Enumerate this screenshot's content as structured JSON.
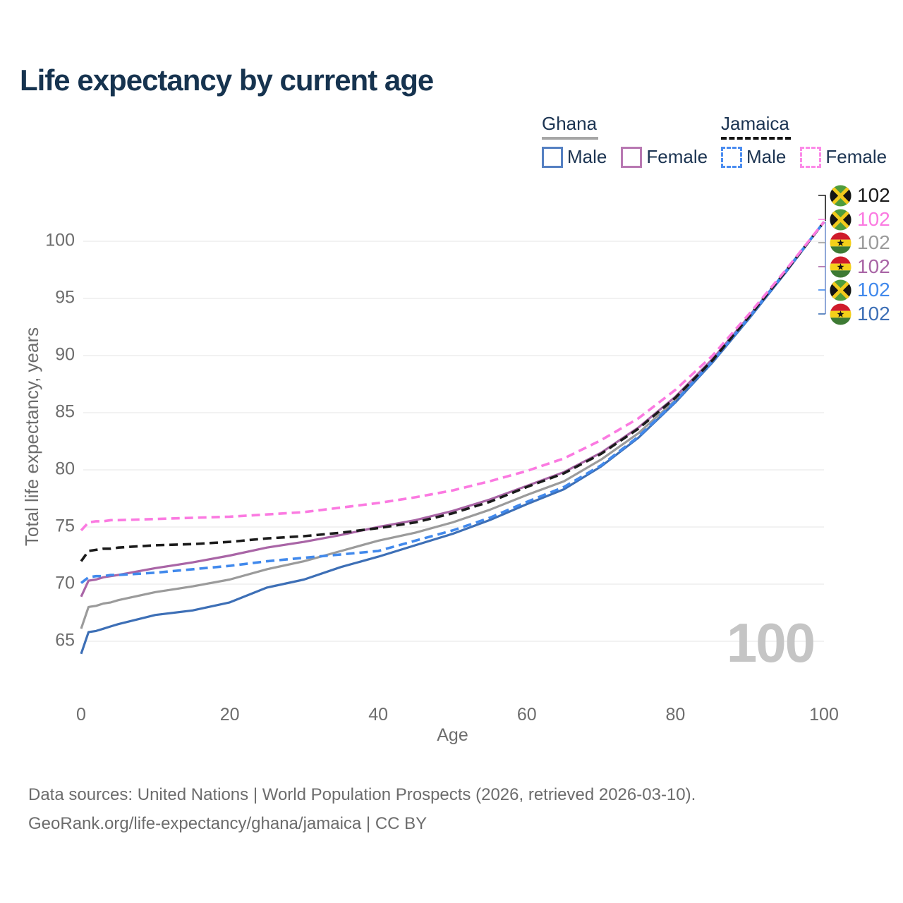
{
  "chart_data": {
    "type": "line",
    "title": "Life expectancy by current age",
    "xlabel": "Age",
    "ylabel": "Total life expectancy, years",
    "xlim": [
      0,
      100
    ],
    "ylim": [
      63,
      102.5
    ],
    "xticks": [
      0,
      20,
      40,
      60,
      80,
      100
    ],
    "yticks": [
      65,
      70,
      75,
      80,
      85,
      90,
      95,
      100
    ],
    "grid": "horizontal",
    "legend_position": "top-right",
    "watermark": "100",
    "x": [
      0,
      1,
      2,
      3,
      4,
      5,
      10,
      15,
      20,
      25,
      30,
      35,
      40,
      45,
      50,
      55,
      60,
      65,
      70,
      75,
      80,
      85,
      90,
      95,
      100
    ],
    "series": [
      {
        "name": "Ghana",
        "group": "Ghana",
        "dash": "solid",
        "color": "#9b9b9b",
        "values": [
          66.1,
          68.0,
          68.1,
          68.3,
          68.4,
          68.6,
          69.3,
          69.8,
          70.4,
          71.3,
          72.0,
          72.9,
          73.8,
          74.5,
          75.4,
          76.5,
          77.8,
          79.0,
          80.9,
          83.2,
          86.1,
          89.5,
          93.4,
          97.4,
          101.7
        ]
      },
      {
        "name": "Ghana Female",
        "group": "Ghana",
        "dash": "solid",
        "color": "#a965a6",
        "values": [
          68.9,
          70.3,
          70.4,
          70.6,
          70.7,
          70.8,
          71.4,
          71.9,
          72.5,
          73.2,
          73.7,
          74.3,
          75.0,
          75.6,
          76.4,
          77.4,
          78.6,
          79.8,
          81.5,
          83.7,
          86.4,
          89.7,
          93.5,
          97.5,
          101.7
        ]
      },
      {
        "name": "Ghana Male",
        "group": "Ghana",
        "dash": "solid",
        "color": "#3d6fb6",
        "values": [
          63.9,
          65.8,
          65.9,
          66.1,
          66.3,
          66.5,
          67.3,
          67.7,
          68.4,
          69.7,
          70.4,
          71.5,
          72.4,
          73.4,
          74.4,
          75.6,
          77.0,
          78.3,
          80.3,
          82.8,
          85.9,
          89.4,
          93.3,
          97.4,
          101.7
        ]
      },
      {
        "name": "Jamaica Male",
        "group": "Jamaica",
        "dash": "dashed",
        "color": "#4189ec",
        "values": [
          70.1,
          70.6,
          70.7,
          70.7,
          70.8,
          70.8,
          71.0,
          71.3,
          71.6,
          72.0,
          72.3,
          72.6,
          72.9,
          73.8,
          74.7,
          75.8,
          77.2,
          78.5,
          80.4,
          82.9,
          86.0,
          89.5,
          93.4,
          97.5,
          101.7
        ]
      },
      {
        "name": "Jamaica",
        "group": "Jamaica",
        "dash": "dashed",
        "color": "#1b1b1b",
        "values": [
          72.0,
          72.9,
          73.0,
          73.1,
          73.1,
          73.2,
          73.4,
          73.5,
          73.7,
          74.0,
          74.2,
          74.5,
          74.9,
          75.4,
          76.2,
          77.2,
          78.5,
          79.7,
          81.4,
          83.6,
          86.3,
          89.6,
          93.5,
          97.5,
          101.7
        ]
      },
      {
        "name": "Jamaica Female",
        "group": "Jamaica",
        "dash": "dashed",
        "color": "#fb7ae1",
        "values": [
          74.7,
          75.4,
          75.5,
          75.5,
          75.6,
          75.6,
          75.7,
          75.8,
          75.9,
          76.1,
          76.3,
          76.7,
          77.1,
          77.6,
          78.2,
          79.0,
          79.9,
          81.0,
          82.6,
          84.5,
          87.0,
          90.0,
          93.7,
          97.6,
          101.7
        ]
      }
    ],
    "end_labels": [
      {
        "flag": "jamaica",
        "series": "Jamaica",
        "value": "102",
        "color": "#1b1b1b"
      },
      {
        "flag": "jamaica",
        "series": "Jamaica Female",
        "value": "102",
        "color": "#fb7ae1"
      },
      {
        "flag": "ghana",
        "series": "Ghana",
        "value": "102",
        "color": "#9b9b9b"
      },
      {
        "flag": "ghana",
        "series": "Ghana Female",
        "value": "102",
        "color": "#a965a6"
      },
      {
        "flag": "jamaica",
        "series": "Jamaica Male",
        "value": "102",
        "color": "#4189ec"
      },
      {
        "flag": "ghana",
        "series": "Ghana Male",
        "value": "102",
        "color": "#3d6fb6"
      }
    ]
  },
  "legend": {
    "groups": [
      {
        "label": "Ghana",
        "line_style": "solid",
        "underline_color": "#a6a6a6",
        "items": [
          {
            "label": "Male",
            "color": "#5580c2",
            "line_style": "solid"
          },
          {
            "label": "Female",
            "color": "#b878b2",
            "line_style": "solid"
          }
        ]
      },
      {
        "label": "Jamaica",
        "line_style": "dashed",
        "underline_color": "#141414",
        "items": [
          {
            "label": "Male",
            "color": "#4a8cf0",
            "line_style": "dashed"
          },
          {
            "label": "Female",
            "color": "#fc8ae8",
            "line_style": "dashed"
          }
        ]
      }
    ]
  },
  "footer": {
    "line1": "Data sources: United Nations | World Population Prospects (2026, retrieved 2026-03-10).",
    "line2": "GeoRank.org/life-expectancy/ghana/jamaica | CC BY"
  },
  "colors": {
    "title_text": "#16334f",
    "axis_text": "#6d6d6d",
    "gridline": "#eaeaea",
    "watermark": "#c5c5c5",
    "leader_vertical": "#7593cf"
  }
}
